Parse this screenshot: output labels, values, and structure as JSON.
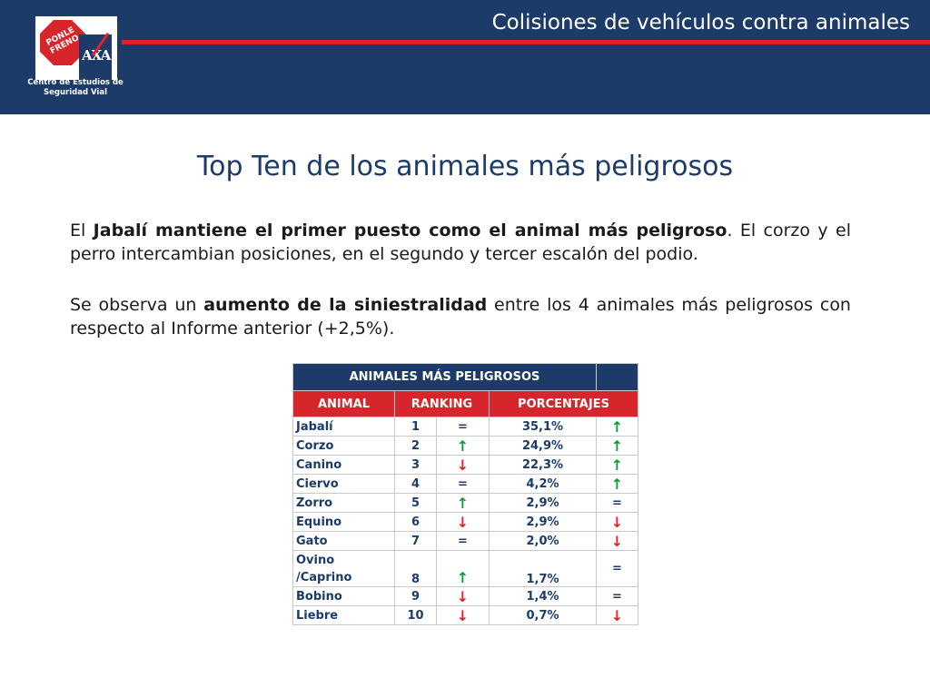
{
  "header": {
    "title": "Colisiones de vehículos contra animales",
    "logo_sign": "PONLE FRENO",
    "logo_brand": "AXA",
    "logo_caption": "Centro de Estudios de Seguridad Vial"
  },
  "slide": {
    "title": "Top Ten de los animales más peligrosos",
    "p1_a": "El ",
    "p1_b": "Jabalí mantiene el primer puesto como el animal más peligroso",
    "p1_c": ". El corzo y el perro intercambian posiciones, en el segundo y tercer escalón del podio.",
    "p2_a": "Se observa un ",
    "p2_b": "aumento de la siniestralidad",
    "p2_c": " entre los 4 animales más peligrosos con respecto al Informe anterior (+2,5%)."
  },
  "table": {
    "title": "ANIMALES MÁS PELIGROSOS",
    "headers": [
      "ANIMAL",
      "RANKING",
      "PORCENTAJES"
    ],
    "rows": [
      {
        "animal": "Jabalí",
        "rank": "1",
        "rank_trend": "=",
        "pct": "35,1%",
        "pct_trend": "↑"
      },
      {
        "animal": "Corzo",
        "rank": "2",
        "rank_trend": "↑",
        "pct": "24,9%",
        "pct_trend": "↑"
      },
      {
        "animal": "Canino",
        "rank": "3",
        "rank_trend": "↓",
        "pct": "22,3%",
        "pct_trend": "↑"
      },
      {
        "animal": "Ciervo",
        "rank": "4",
        "rank_trend": "=",
        "pct": "4,2%",
        "pct_trend": "↑"
      },
      {
        "animal": "Zorro",
        "rank": "5",
        "rank_trend": "↑",
        "pct": "2,9%",
        "pct_trend": "="
      },
      {
        "animal": "Equino",
        "rank": "6",
        "rank_trend": "↓",
        "pct": "2,9%",
        "pct_trend": "↓"
      },
      {
        "animal": "Gato",
        "rank": "7",
        "rank_trend": "=",
        "pct": "2,0%",
        "pct_trend": "↓"
      },
      {
        "animal": "Ovino /Caprino",
        "rank": "8",
        "rank_trend": "↑",
        "pct": "1,7%",
        "pct_trend": "="
      },
      {
        "animal": "Bobino",
        "rank": "9",
        "rank_trend": "↓",
        "pct": "1,4%",
        "pct_trend": "="
      },
      {
        "animal": "Liebre",
        "rank": "10",
        "rank_trend": "↓",
        "pct": "0,7%",
        "pct_trend": "↓"
      }
    ]
  },
  "colors": {
    "navy": "#1c3b69",
    "red": "#d7262b",
    "green": "#119a3c"
  }
}
